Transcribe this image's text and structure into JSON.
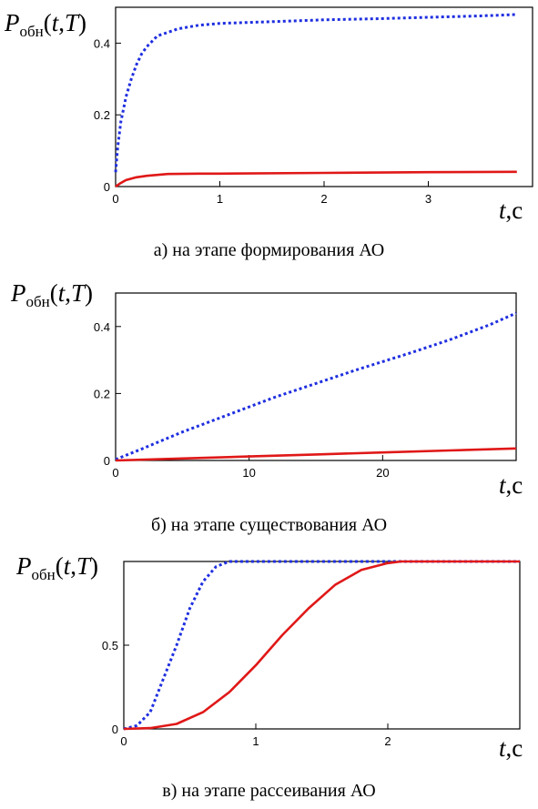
{
  "chart_data": [
    {
      "type": "line",
      "ylabel": {
        "main": "P",
        "sub": "обн",
        "args": "(t,T)"
      },
      "xlabel": "t,c",
      "xlim": [
        0,
        4
      ],
      "ylim": [
        0,
        0.5
      ],
      "xticks": [
        0,
        1,
        2,
        3
      ],
      "yticks": [
        0,
        0.2,
        0.4
      ],
      "caption": "а) на этапе формирования АО",
      "series": [
        {
          "style": "dotted",
          "color": "#1f2fe0",
          "x": [
            0,
            0.02,
            0.05,
            0.1,
            0.15,
            0.2,
            0.25,
            0.3,
            0.4,
            0.5,
            0.6,
            0.8,
            1.0,
            1.5,
            2.0,
            2.5,
            3.0,
            3.5,
            3.85
          ],
          "y": [
            0.04,
            0.11,
            0.18,
            0.25,
            0.3,
            0.34,
            0.37,
            0.39,
            0.42,
            0.43,
            0.44,
            0.45,
            0.455,
            0.46,
            0.465,
            0.468,
            0.472,
            0.476,
            0.48
          ]
        },
        {
          "style": "solid",
          "color": "#e01818",
          "x": [
            0,
            0.05,
            0.1,
            0.2,
            0.3,
            0.5,
            0.8,
            1.0,
            2.0,
            3.0,
            3.85
          ],
          "y": [
            0,
            0.01,
            0.018,
            0.026,
            0.03,
            0.035,
            0.036,
            0.036,
            0.038,
            0.04,
            0.041
          ]
        }
      ]
    },
    {
      "type": "line",
      "ylabel": {
        "main": "P",
        "sub": "обн",
        "args": "(t,T)"
      },
      "xlabel": "t,c",
      "xlim": [
        0,
        30
      ],
      "ylim": [
        0,
        0.5
      ],
      "xticks": [
        0,
        10,
        20
      ],
      "yticks": [
        0,
        0.2,
        0.4
      ],
      "caption": "б) на этапе существования АО",
      "series": [
        {
          "style": "dotted",
          "color": "#1f2fe0",
          "x": [
            0,
            2,
            5,
            8,
            10,
            12,
            15,
            18,
            20,
            22,
            25,
            28,
            30
          ],
          "y": [
            0.003,
            0.035,
            0.085,
            0.13,
            0.16,
            0.19,
            0.23,
            0.27,
            0.295,
            0.32,
            0.36,
            0.405,
            0.44
          ]
        },
        {
          "style": "solid",
          "color": "#e01818",
          "x": [
            0,
            5,
            10,
            15,
            20,
            25,
            30
          ],
          "y": [
            0,
            0.006,
            0.012,
            0.018,
            0.024,
            0.03,
            0.036
          ]
        }
      ]
    },
    {
      "type": "line",
      "ylabel": {
        "main": "P",
        "sub": "обн",
        "args": "(t,T)"
      },
      "xlabel": "t,c",
      "xlim": [
        0,
        3
      ],
      "ylim": [
        0,
        1
      ],
      "xticks": [
        0,
        1,
        2
      ],
      "yticks": [
        0,
        0.5
      ],
      "caption": "в) на этапе рассеивания АО",
      "series": [
        {
          "style": "dotted",
          "color": "#1f2fe0",
          "x": [
            0,
            0.1,
            0.2,
            0.3,
            0.4,
            0.5,
            0.6,
            0.7,
            0.8,
            1.0,
            2.0,
            3.0
          ],
          "y": [
            0,
            0.02,
            0.1,
            0.3,
            0.5,
            0.72,
            0.88,
            0.97,
            1.0,
            1.0,
            1.0,
            1.0
          ]
        },
        {
          "style": "solid",
          "color": "#e01818",
          "x": [
            0,
            0.2,
            0.4,
            0.6,
            0.8,
            1.0,
            1.2,
            1.4,
            1.6,
            1.8,
            2.0,
            2.1,
            3.0
          ],
          "y": [
            0,
            0.005,
            0.03,
            0.1,
            0.22,
            0.38,
            0.56,
            0.72,
            0.86,
            0.95,
            0.99,
            1.0,
            1.0
          ]
        }
      ]
    }
  ]
}
